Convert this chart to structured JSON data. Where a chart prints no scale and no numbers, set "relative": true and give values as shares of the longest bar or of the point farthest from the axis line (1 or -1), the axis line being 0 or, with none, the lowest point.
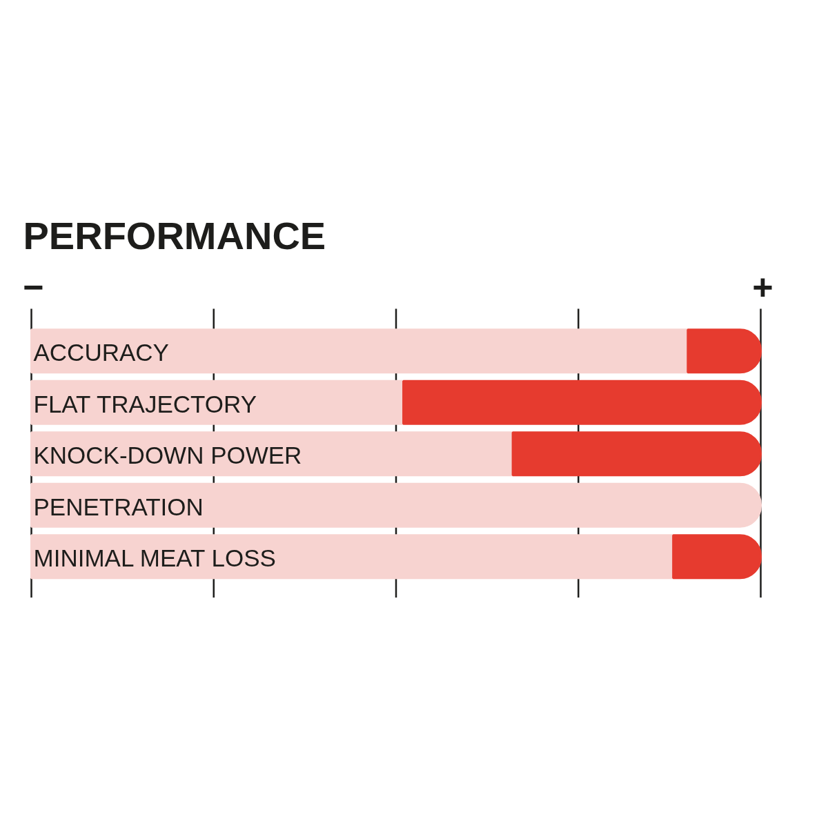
{
  "chart_data": {
    "type": "bar",
    "title": "PERFORMANCE",
    "orientation": "horizontal",
    "stacked": true,
    "relative": true,
    "categories": [
      "ACCURACY",
      "FLAT TRAJECTORY",
      "KNOCK-DOWN POWER",
      "PENETRATION",
      "MINIMAL MEAT LOSS"
    ],
    "series": [
      {
        "color": "#f7d3d0",
        "values": [
          0.9,
          0.51,
          0.66,
          1.0,
          0.88
        ]
      },
      {
        "color": "#e63b2f",
        "values": [
          0.1,
          0.49,
          0.34,
          null,
          0.12
        ]
      }
    ],
    "ref_lines": [
      {
        "axis": "x",
        "value": 0,
        "color": "#1d1d1b"
      },
      {
        "axis": "x",
        "value": 0.25,
        "color": "#1d1d1b"
      },
      {
        "axis": "x",
        "value": 0.5,
        "color": "#1d1d1b"
      },
      {
        "axis": "x",
        "value": 0.75,
        "color": "#1d1d1b"
      },
      {
        "axis": "x",
        "value": 1,
        "color": "#1d1d1b"
      }
    ],
    "annotations": [
      "−",
      "+"
    ]
  }
}
